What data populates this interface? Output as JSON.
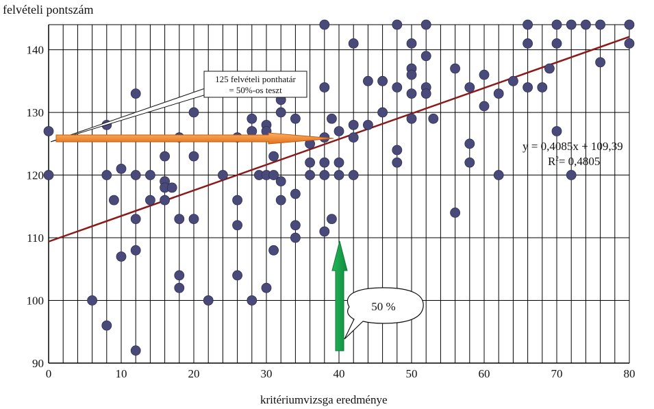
{
  "chart_data": {
    "type": "scatter",
    "title": "",
    "ylabel": "felvételi pontszám",
    "xlabel": "kritériumvizsga eredménye",
    "xlim": [
      0,
      80
    ],
    "ylim": [
      90,
      144
    ],
    "xticks": [
      0,
      10,
      20,
      30,
      40,
      50,
      60,
      70,
      80
    ],
    "yticks": [
      90,
      100,
      110,
      120,
      130,
      140
    ],
    "grid": true,
    "point_color": "#4a4a7a",
    "trendline": {
      "slope": 0.4085,
      "intercept": 109.39,
      "color": "#8b1a1a",
      "equation_label": "y = 0,4085x + 109,39",
      "r2_label": "R",
      "r2_sup": "2",
      "r2_value": "= 0,4805"
    },
    "annotations": {
      "callout_line1": "125 felvételi ponthatár",
      "callout_line2": "= 50%-os teszt",
      "arrow_horizontal_color": "#f0892a",
      "arrow_vertical_color": "#1aa050",
      "bubble_text": "50 %"
    },
    "points": [
      [
        0,
        127
      ],
      [
        0,
        120
      ],
      [
        6,
        100
      ],
      [
        8,
        128
      ],
      [
        8,
        120
      ],
      [
        8,
        96
      ],
      [
        9,
        116
      ],
      [
        10,
        121
      ],
      [
        10,
        107
      ],
      [
        12,
        133
      ],
      [
        12,
        120
      ],
      [
        12,
        113
      ],
      [
        12,
        108
      ],
      [
        12,
        92
      ],
      [
        14,
        120
      ],
      [
        14,
        116
      ],
      [
        16,
        123
      ],
      [
        16,
        119
      ],
      [
        16,
        118
      ],
      [
        16,
        116
      ],
      [
        17,
        118
      ],
      [
        18,
        126
      ],
      [
        18,
        113
      ],
      [
        18,
        104
      ],
      [
        18,
        102
      ],
      [
        20,
        130
      ],
      [
        20,
        123
      ],
      [
        20,
        113
      ],
      [
        22,
        100
      ],
      [
        24,
        120
      ],
      [
        26,
        126
      ],
      [
        26,
        116
      ],
      [
        26,
        112
      ],
      [
        26,
        104
      ],
      [
        28,
        129
      ],
      [
        28,
        127
      ],
      [
        28,
        100
      ],
      [
        29,
        120
      ],
      [
        30,
        128
      ],
      [
        30,
        127
      ],
      [
        30,
        120
      ],
      [
        30,
        102
      ],
      [
        31,
        123
      ],
      [
        31,
        120
      ],
      [
        31,
        108
      ],
      [
        32,
        132
      ],
      [
        32,
        130
      ],
      [
        32,
        119
      ],
      [
        32,
        116
      ],
      [
        34,
        129
      ],
      [
        34,
        117
      ],
      [
        34,
        112
      ],
      [
        34,
        110
      ],
      [
        36,
        125
      ],
      [
        36,
        122
      ],
      [
        36,
        120
      ],
      [
        38,
        144
      ],
      [
        38,
        134
      ],
      [
        38,
        126
      ],
      [
        38,
        122
      ],
      [
        38,
        120
      ],
      [
        38,
        111
      ],
      [
        39,
        129
      ],
      [
        39,
        113
      ],
      [
        40,
        127
      ],
      [
        40,
        122
      ],
      [
        40,
        120
      ],
      [
        42,
        141
      ],
      [
        42,
        128
      ],
      [
        42,
        126
      ],
      [
        42,
        120
      ],
      [
        44,
        135
      ],
      [
        44,
        128
      ],
      [
        46,
        135
      ],
      [
        46,
        130
      ],
      [
        48,
        144
      ],
      [
        48,
        134
      ],
      [
        48,
        124
      ],
      [
        48,
        122
      ],
      [
        50,
        141
      ],
      [
        50,
        137
      ],
      [
        50,
        136
      ],
      [
        50,
        133
      ],
      [
        50,
        129
      ],
      [
        52,
        144
      ],
      [
        52,
        139
      ],
      [
        52,
        134
      ],
      [
        52,
        133
      ],
      [
        53,
        129
      ],
      [
        56,
        137
      ],
      [
        56,
        114
      ],
      [
        58,
        134
      ],
      [
        58,
        125
      ],
      [
        58,
        122
      ],
      [
        60,
        136
      ],
      [
        60,
        131
      ],
      [
        62,
        133
      ],
      [
        62,
        120
      ],
      [
        64,
        135
      ],
      [
        66,
        144
      ],
      [
        66,
        141
      ],
      [
        66,
        134
      ],
      [
        68,
        134
      ],
      [
        69,
        137
      ],
      [
        70,
        144
      ],
      [
        70,
        141
      ],
      [
        70,
        127
      ],
      [
        72,
        144
      ],
      [
        72,
        120
      ],
      [
        74,
        144
      ],
      [
        76,
        144
      ],
      [
        76,
        138
      ],
      [
        80,
        144
      ],
      [
        80,
        141
      ]
    ]
  }
}
